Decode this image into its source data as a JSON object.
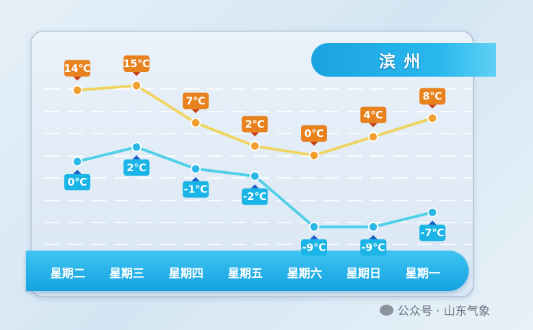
{
  "chart_data": {
    "type": "line",
    "title": "滨州",
    "categories": [
      "星期二",
      "星期三",
      "星期四",
      "星期五",
      "星期六",
      "星期日",
      "星期一"
    ],
    "series": [
      {
        "values": [
          14,
          15,
          7,
          2,
          0,
          4,
          8
        ],
        "labels": [
          "14℃",
          "15℃",
          "7℃",
          "2℃",
          "0℃",
          "4℃",
          "8℃"
        ],
        "color": "#f0d460",
        "label_color": "#e8821e"
      },
      {
        "values": [
          0,
          2,
          -1,
          -2,
          -9,
          -9,
          -7
        ],
        "labels": [
          "0℃",
          "2℃",
          "-1℃",
          "-2℃",
          "-9℃",
          "-9℃",
          "-7℃"
        ],
        "color": "#4fd0e8",
        "label_color": "#1ab4e6"
      }
    ],
    "grid": true
  },
  "watermark": "公众号 · 山东气象"
}
